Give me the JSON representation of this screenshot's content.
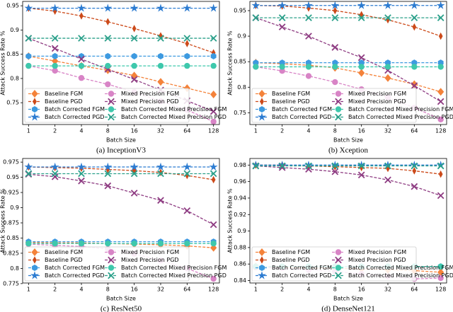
{
  "chart_data": [
    {
      "type": "line",
      "title": "(a) InceptionV3",
      "x_label": "Batch Size",
      "y_label": "Attack Success Rate %",
      "categories": [
        "1",
        "2",
        "4",
        "8",
        "16",
        "32",
        "64",
        "128"
      ],
      "ylim": [
        0.705,
        0.959
      ],
      "yticks": [
        0.75,
        0.8,
        0.85,
        0.9,
        0.95
      ],
      "grid": false,
      "legend": "lower left",
      "linestyle": "dashed",
      "series": [
        {
          "name": "Baseline FGM",
          "color": "#f4823a",
          "marker": "diamond",
          "values": [
            0.846,
            0.836,
            0.826,
            0.817,
            0.806,
            0.793,
            0.78,
            0.767
          ]
        },
        {
          "name": "Baseline PGD",
          "color": "#cc4a1a",
          "marker": "thin-diamond",
          "values": [
            0.945,
            0.939,
            0.929,
            0.917,
            0.903,
            0.888,
            0.872,
            0.853
          ]
        },
        {
          "name": "Batch Corrected FGM",
          "color": "#3d9ae0",
          "marker": "hexagon",
          "values": [
            0.846,
            0.846,
            0.846,
            0.846,
            0.846,
            0.846,
            0.846,
            0.846
          ]
        },
        {
          "name": "Batch Corrected PGD",
          "color": "#2b7bd1",
          "marker": "star",
          "values": [
            0.945,
            0.945,
            0.945,
            0.945,
            0.945,
            0.945,
            0.945,
            0.945
          ]
        },
        {
          "name": "Mixed Precision FGM",
          "color": "#d884c6",
          "marker": "circle",
          "values": [
            0.826,
            0.816,
            0.801,
            0.788,
            0.772,
            0.753,
            0.735,
            0.711
          ]
        },
        {
          "name": "Mixed Precision PGD",
          "color": "#8e3c82",
          "marker": "x",
          "values": [
            0.883,
            0.862,
            0.84,
            0.819,
            0.798,
            0.776,
            0.754,
            0.732
          ]
        },
        {
          "name": "Batch Corrected Mixed Precision FGM",
          "color": "#3ec8ac",
          "marker": "circle",
          "values": [
            0.826,
            0.826,
            0.826,
            0.826,
            0.826,
            0.826,
            0.826,
            0.826
          ]
        },
        {
          "name": "Batch Corrected Mixed Precision PGD",
          "color": "#2ba08a",
          "marker": "x",
          "values": [
            0.883,
            0.883,
            0.883,
            0.883,
            0.883,
            0.883,
            0.883,
            0.883
          ]
        }
      ]
    },
    {
      "type": "line",
      "title": "(b) Xception",
      "x_label": "Batch Size",
      "y_label": "Attack Success Rate %",
      "categories": [
        "1",
        "2",
        "4",
        "8",
        "16",
        "32",
        "64",
        "128"
      ],
      "ylim": [
        0.727,
        0.968
      ],
      "yticks": [
        0.75,
        0.8,
        0.85,
        0.9,
        0.95
      ],
      "grid": false,
      "legend": "lower left",
      "linestyle": "dashed",
      "series": [
        {
          "name": "Baseline FGM",
          "color": "#f4823a",
          "marker": "diamond",
          "values": [
            0.848,
            0.846,
            0.843,
            0.838,
            0.828,
            0.818,
            0.806,
            0.791
          ]
        },
        {
          "name": "Baseline PGD",
          "color": "#cc4a1a",
          "marker": "thin-diamond",
          "values": [
            0.96,
            0.959,
            0.955,
            0.95,
            0.942,
            0.932,
            0.918,
            0.9
          ]
        },
        {
          "name": "Batch Corrected FGM",
          "color": "#3d9ae0",
          "marker": "hexagon",
          "values": [
            0.848,
            0.848,
            0.848,
            0.848,
            0.848,
            0.848,
            0.848,
            0.848
          ]
        },
        {
          "name": "Batch Corrected PGD",
          "color": "#2b7bd1",
          "marker": "star",
          "values": [
            0.96,
            0.96,
            0.96,
            0.96,
            0.96,
            0.96,
            0.96,
            0.96
          ]
        },
        {
          "name": "Mixed Precision FGM",
          "color": "#d884c6",
          "marker": "circle",
          "values": [
            0.84,
            0.832,
            0.822,
            0.81,
            0.796,
            0.78,
            0.76,
            0.737
          ]
        },
        {
          "name": "Mixed Precision PGD",
          "color": "#8e3c82",
          "marker": "x",
          "values": [
            0.936,
            0.918,
            0.9,
            0.878,
            0.858,
            0.833,
            0.803,
            0.772
          ]
        },
        {
          "name": "Batch Corrected Mixed Precision FGM",
          "color": "#3ec8ac",
          "marker": "circle",
          "values": [
            0.84,
            0.84,
            0.84,
            0.84,
            0.84,
            0.84,
            0.84,
            0.84
          ]
        },
        {
          "name": "Batch Corrected Mixed Precision PGD",
          "color": "#2ba08a",
          "marker": "x",
          "values": [
            0.936,
            0.936,
            0.936,
            0.936,
            0.936,
            0.936,
            0.936,
            0.936
          ]
        }
      ]
    },
    {
      "type": "line",
      "title": "(c) ResNet50",
      "x_label": "Batch Size",
      "y_label": "Attack Success Rate %",
      "categories": [
        "1",
        "2",
        "4",
        "8",
        "16",
        "32",
        "64",
        "128"
      ],
      "ylim": [
        0.776,
        0.981
      ],
      "yticks": [
        0.775,
        0.8,
        0.825,
        0.85,
        0.875,
        0.9,
        0.925,
        0.95,
        0.975
      ],
      "grid": false,
      "legend": "lower left",
      "linestyle": "dashed",
      "series": [
        {
          "name": "Baseline FGM",
          "color": "#f4823a",
          "marker": "diamond",
          "values": [
            0.843,
            0.842,
            0.842,
            0.841,
            0.84,
            0.839,
            0.837,
            0.834
          ]
        },
        {
          "name": "Baseline PGD",
          "color": "#cc4a1a",
          "marker": "thin-diamond",
          "values": [
            0.967,
            0.966,
            0.965,
            0.963,
            0.961,
            0.958,
            0.953,
            0.946
          ]
        },
        {
          "name": "Batch Corrected FGM",
          "color": "#3d9ae0",
          "marker": "hexagon",
          "values": [
            0.844,
            0.844,
            0.844,
            0.844,
            0.844,
            0.844,
            0.844,
            0.844
          ]
        },
        {
          "name": "Batch Corrected PGD",
          "color": "#2b7bd1",
          "marker": "star",
          "values": [
            0.967,
            0.967,
            0.967,
            0.967,
            0.967,
            0.967,
            0.967,
            0.967
          ]
        },
        {
          "name": "Mixed Precision FGM",
          "color": "#d884c6",
          "marker": "circle",
          "values": [
            0.84,
            0.838,
            0.836,
            0.832,
            0.824,
            0.813,
            0.8,
            0.783
          ]
        },
        {
          "name": "Mixed Precision PGD",
          "color": "#8e3c82",
          "marker": "x",
          "values": [
            0.955,
            0.951,
            0.944,
            0.936,
            0.924,
            0.912,
            0.895,
            0.872
          ]
        },
        {
          "name": "Batch Corrected Mixed Precision FGM",
          "color": "#3ec8ac",
          "marker": "circle",
          "values": [
            0.841,
            0.841,
            0.841,
            0.841,
            0.841,
            0.841,
            0.841,
            0.841
          ]
        },
        {
          "name": "Batch Corrected Mixed Precision PGD",
          "color": "#2ba08a",
          "marker": "x",
          "values": [
            0.956,
            0.956,
            0.956,
            0.956,
            0.956,
            0.956,
            0.956,
            0.956
          ]
        }
      ]
    },
    {
      "type": "line",
      "title": "(d) DenseNet121",
      "x_label": "Batch Size",
      "y_label": "Attack Success Rate %",
      "categories": [
        "1",
        "2",
        "4",
        "8",
        "16",
        "32",
        "64",
        "128"
      ],
      "ylim": [
        0.837,
        0.988
      ],
      "yticks": [
        0.84,
        0.86,
        0.88,
        0.9,
        0.92,
        0.94,
        0.96,
        0.98
      ],
      "grid": false,
      "legend": "lower left",
      "linestyle": "dashed",
      "series": [
        {
          "name": "Baseline FGM",
          "color": "#f4823a",
          "marker": "diamond",
          "values": [
            0.857,
            0.856,
            0.855,
            0.855,
            0.854,
            0.853,
            0.852,
            0.85
          ]
        },
        {
          "name": "Baseline PGD",
          "color": "#cc4a1a",
          "marker": "thin-diamond",
          "values": [
            0.98,
            0.98,
            0.979,
            0.978,
            0.977,
            0.976,
            0.973,
            0.969
          ]
        },
        {
          "name": "Batch Corrected FGM",
          "color": "#3d9ae0",
          "marker": "hexagon",
          "values": [
            0.857,
            0.857,
            0.857,
            0.857,
            0.857,
            0.857,
            0.857,
            0.857
          ]
        },
        {
          "name": "Batch Corrected PGD",
          "color": "#2b7bd1",
          "marker": "star",
          "values": [
            0.98,
            0.98,
            0.98,
            0.98,
            0.98,
            0.98,
            0.98,
            0.98
          ]
        },
        {
          "name": "Mixed Precision FGM",
          "color": "#d884c6",
          "marker": "circle",
          "values": [
            0.856,
            0.855,
            0.853,
            0.851,
            0.848,
            0.845,
            0.842,
            0.843
          ]
        },
        {
          "name": "Mixed Precision PGD",
          "color": "#8e3c82",
          "marker": "x",
          "values": [
            0.979,
            0.977,
            0.975,
            0.972,
            0.968,
            0.962,
            0.954,
            0.943
          ]
        },
        {
          "name": "Batch Corrected Mixed Precision FGM",
          "color": "#3ec8ac",
          "marker": "circle",
          "values": [
            0.857,
            0.857,
            0.857,
            0.857,
            0.857,
            0.857,
            0.857,
            0.857
          ]
        },
        {
          "name": "Batch Corrected Mixed Precision PGD",
          "color": "#2ba08a",
          "marker": "x",
          "values": [
            0.979,
            0.979,
            0.979,
            0.979,
            0.979,
            0.979,
            0.979,
            0.979
          ]
        }
      ]
    }
  ]
}
